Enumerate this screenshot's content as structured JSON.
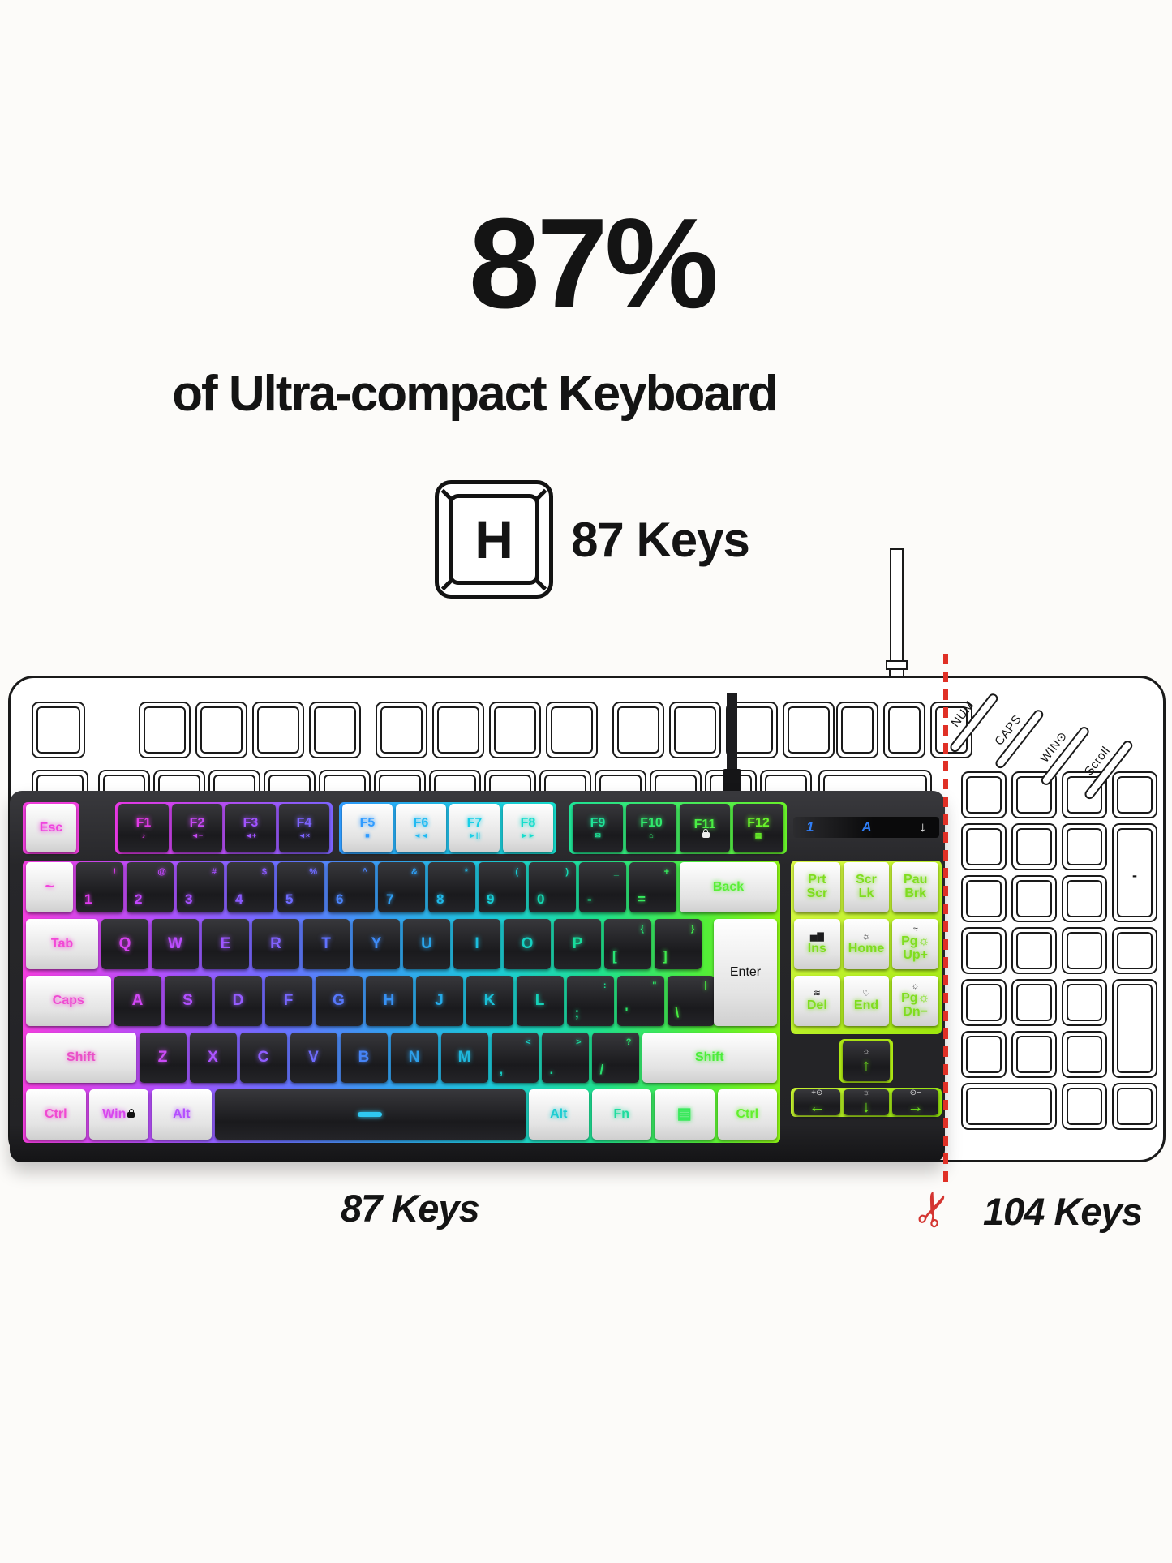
{
  "page": {
    "bg": "#fcfbf9"
  },
  "header": {
    "title": "87%",
    "subtitle": "of Ultra-compact Keyboard",
    "keycap_letter": "H",
    "keycap_caption": "87 Keys"
  },
  "footer": {
    "left_label": "87 Keys",
    "right_label": "104 Keys",
    "scissors_icon": "✂"
  },
  "status_panel": {
    "num": "1",
    "caps": "A",
    "arrow": "↓",
    "num_color": "#2f7df5",
    "caps_color": "#2f7df5",
    "arrow_color": "#ffffff"
  },
  "outline_keyboard": {
    "indicator_labels": [
      "NUM",
      "CAPS",
      "WIN⊙",
      "Scroll"
    ],
    "numpad_minus": "-"
  },
  "keyboard": {
    "f_row_segments": [
      {
        "keys": [
          {
            "n": "esc",
            "t": "Esc",
            "k": "w",
            "c": "#ef44de"
          }
        ]
      },
      {
        "keys": [
          {
            "n": "f1",
            "t": "F1",
            "i": "♪",
            "k": "b",
            "c": "#e23ae8"
          },
          {
            "n": "f2",
            "t": "F2",
            "i": "◄−",
            "k": "b",
            "c": "#c648f4"
          },
          {
            "n": "f3",
            "t": "F3",
            "i": "◄+",
            "k": "b",
            "c": "#a153ff"
          },
          {
            "n": "f4",
            "t": "F4",
            "i": "◄×",
            "k": "b",
            "c": "#7d64ff"
          }
        ]
      },
      {
        "keys": [
          {
            "n": "f5",
            "t": "F5",
            "i": "■",
            "k": "w",
            "c": "#2f9bff"
          },
          {
            "n": "f6",
            "t": "F6",
            "i": "◄◄",
            "k": "w",
            "c": "#20baf2"
          },
          {
            "n": "f7",
            "t": "F7",
            "i": "►||",
            "k": "w",
            "c": "#18cfe6"
          },
          {
            "n": "f8",
            "t": "F8",
            "i": "►►",
            "k": "w",
            "c": "#15ddcc"
          }
        ]
      },
      {
        "keys": [
          {
            "n": "f9",
            "t": "F9",
            "i": "✉",
            "k": "b",
            "c": "#1fe498"
          },
          {
            "n": "f10",
            "t": "F10",
            "i": "⌂",
            "k": "b",
            "c": "#30e96c"
          },
          {
            "n": "f11",
            "t": "F11",
            "i": "lock",
            "k": "b",
            "c": "#4aef44"
          },
          {
            "n": "f12",
            "t": "F12",
            "i": "▤",
            "k": "b",
            "c": "#69f42a"
          }
        ]
      }
    ],
    "main_rows": [
      {
        "keys": [
          {
            "n": "tilde",
            "t": "~",
            "k": "w",
            "w": 1,
            "c": "#f340dc"
          },
          {
            "n": "1",
            "t": "1",
            "s": "!",
            "k": "b",
            "c": "#e33cf2"
          },
          {
            "n": "2",
            "t": "2",
            "s": "@",
            "k": "b",
            "c": "#c447ff"
          },
          {
            "n": "3",
            "t": "3",
            "s": "#",
            "k": "b",
            "c": "#a750ff"
          },
          {
            "n": "4",
            "t": "4",
            "s": "$",
            "k": "b",
            "c": "#8b5bff"
          },
          {
            "n": "5",
            "t": "5",
            "s": "%",
            "k": "b",
            "c": "#6e6bff"
          },
          {
            "n": "6",
            "t": "6",
            "s": "^",
            "k": "b",
            "c": "#4a84fa"
          },
          {
            "n": "7",
            "t": "7",
            "s": "&",
            "k": "b",
            "c": "#2f9ef2"
          },
          {
            "n": "8",
            "t": "8",
            "s": "*",
            "k": "b",
            "c": "#20b7e6"
          },
          {
            "n": "9",
            "t": "9",
            "s": "(",
            "k": "b",
            "c": "#17ccd4"
          },
          {
            "n": "0",
            "t": "0",
            "s": ")",
            "k": "b",
            "c": "#15dab2"
          },
          {
            "n": "minus",
            "t": "-",
            "s": "_",
            "k": "b",
            "c": "#1de288"
          },
          {
            "n": "equals",
            "t": "=",
            "s": "+",
            "k": "b",
            "c": "#36ea5e"
          },
          {
            "n": "back",
            "t": "Back",
            "k": "w",
            "w": 2,
            "c": "#58ef36"
          }
        ]
      },
      {
        "keys": [
          {
            "n": "tab",
            "t": "Tab",
            "k": "w",
            "w": 1.5,
            "c": "#f248d6"
          },
          {
            "n": "q",
            "t": "Q",
            "k": "b",
            "c": "#d944f2"
          },
          {
            "n": "w",
            "t": "W",
            "k": "b",
            "c": "#bb4dff"
          },
          {
            "n": "e",
            "t": "E",
            "k": "b",
            "c": "#9e57ff"
          },
          {
            "n": "r",
            "t": "R",
            "k": "b",
            "c": "#8262ff"
          },
          {
            "n": "t",
            "t": "T",
            "k": "b",
            "c": "#6072ff"
          },
          {
            "n": "y",
            "t": "Y",
            "k": "b",
            "c": "#3e8bf8"
          },
          {
            "n": "u",
            "t": "U",
            "k": "b",
            "c": "#29a5ec"
          },
          {
            "n": "i",
            "t": "I",
            "k": "b",
            "c": "#1cbede"
          },
          {
            "n": "o",
            "t": "O",
            "k": "b",
            "c": "#16d1c2"
          },
          {
            "n": "p",
            "t": "P",
            "k": "b",
            "c": "#18dc9c"
          },
          {
            "n": "lbracket",
            "t": "[",
            "s": "{",
            "k": "b",
            "c": "#28e474"
          },
          {
            "n": "rbracket",
            "t": "]",
            "s": "}",
            "k": "b",
            "c": "#41eb4e"
          }
        ]
      },
      {
        "keys": [
          {
            "n": "caps",
            "t": "Caps",
            "k": "w",
            "w": 1.75,
            "c": "#ef4bd2"
          },
          {
            "n": "a",
            "t": "A",
            "k": "b",
            "c": "#d147f4"
          },
          {
            "n": "s",
            "t": "S",
            "k": "b",
            "c": "#b250ff"
          },
          {
            "n": "d",
            "t": "D",
            "k": "b",
            "c": "#955cff"
          },
          {
            "n": "f",
            "t": "F",
            "k": "b",
            "c": "#7867ff"
          },
          {
            "n": "g",
            "t": "G",
            "k": "b",
            "c": "#5677fa"
          },
          {
            "n": "h",
            "t": "H",
            "k": "b",
            "c": "#3791f4"
          },
          {
            "n": "j",
            "t": "J",
            "k": "b",
            "c": "#25aae8"
          },
          {
            "n": "k",
            "t": "K",
            "k": "b",
            "c": "#1ac1d8"
          },
          {
            "n": "l",
            "t": "L",
            "k": "b",
            "c": "#16d2b8"
          },
          {
            "n": "semicolon",
            "t": ";",
            "s": ":",
            "k": "b",
            "c": "#1bde90"
          },
          {
            "n": "quote",
            "t": "'",
            "s": "\"",
            "k": "b",
            "c": "#2de766"
          },
          {
            "n": "backslash",
            "t": "\\",
            "s": "|",
            "k": "b",
            "c": "#49ed40"
          }
        ]
      },
      {
        "keys": [
          {
            "n": "shift-left",
            "t": "Shift",
            "k": "w",
            "w": 2.25,
            "c": "#ea4fc8"
          },
          {
            "n": "z",
            "t": "Z",
            "k": "b",
            "c": "#cb4bf6"
          },
          {
            "n": "x",
            "t": "X",
            "k": "b",
            "c": "#ac53ff"
          },
          {
            "n": "c",
            "t": "C",
            "k": "b",
            "c": "#905eff"
          },
          {
            "n": "v",
            "t": "V",
            "k": "b",
            "c": "#6f6cfd"
          },
          {
            "n": "b",
            "t": "B",
            "k": "b",
            "c": "#4684f6"
          },
          {
            "n": "n",
            "t": "N",
            "k": "b",
            "c": "#2d9eea"
          },
          {
            "n": "m",
            "t": "M",
            "k": "b",
            "c": "#1eb6dc"
          },
          {
            "n": "comma",
            "t": ",",
            "s": "<",
            "k": "b",
            "c": "#17c9c0"
          },
          {
            "n": "period",
            "t": ".",
            "s": ">",
            "k": "b",
            "c": "#19d79a"
          },
          {
            "n": "slash",
            "t": "/",
            "s": "?",
            "k": "b",
            "c": "#2ae16e"
          },
          {
            "n": "shift-right",
            "t": "Shift",
            "k": "w",
            "w": 2.75,
            "c": "#4bed3a"
          }
        ]
      },
      {
        "keys": [
          {
            "n": "ctrl-left",
            "t": "Ctrl",
            "k": "w",
            "w": 1.25,
            "c": "#f049d2"
          },
          {
            "n": "win",
            "t": "Win",
            "k": "w",
            "w": 1.25,
            "c": "#d846ee",
            "lock": true
          },
          {
            "n": "alt-left",
            "t": "Alt",
            "k": "w",
            "w": 1.25,
            "c": "#b44fff"
          },
          {
            "n": "space",
            "t": "",
            "k": "b",
            "w": 6.25,
            "c": "#3f8cff",
            "dash": "#2fc8f0"
          },
          {
            "n": "alt-right",
            "t": "Alt",
            "k": "w",
            "w": 1.25,
            "c": "#1ccdd2"
          },
          {
            "n": "fn",
            "t": "Fn",
            "k": "w",
            "w": 1.25,
            "c": "#1edc9e"
          },
          {
            "n": "menu",
            "t": "▤",
            "k": "w",
            "w": 1.25,
            "c": "#3ae95c"
          },
          {
            "n": "ctrl-right",
            "t": "Ctrl",
            "k": "w",
            "w": 1.25,
            "c": "#62f02c"
          }
        ]
      }
    ],
    "enter": {
      "n": "enter",
      "t": "Enter",
      "k": "w",
      "c": "#5ef030"
    },
    "right_cluster": {
      "text_color": "#7fdd1f",
      "icon_color": "#1d1d1f",
      "pad_rows": [
        [
          {
            "n": "prt-scr",
            "lines": [
              "Prt",
              "Scr"
            ]
          },
          {
            "n": "scr-lk",
            "lines": [
              "Scr",
              "Lk"
            ]
          },
          {
            "n": "pau-brk",
            "lines": [
              "Pau",
              "Brk"
            ]
          }
        ],
        [
          {
            "n": "ins",
            "icon": "▅▇",
            "lines": [
              "Ins"
            ]
          },
          {
            "n": "home",
            "icon": "☼",
            "lines": [
              "Home"
            ]
          },
          {
            "n": "pg-up",
            "icon": "≈",
            "lines": [
              "Pg☼",
              "Up+"
            ]
          }
        ],
        [
          {
            "n": "del",
            "icon": "≋",
            "lines": [
              "Del"
            ]
          },
          {
            "n": "end",
            "icon": "♡",
            "lines": [
              "End"
            ]
          },
          {
            "n": "pg-dn",
            "icon": "☼",
            "lines": [
              "Pg☼",
              "Dn−"
            ]
          }
        ]
      ],
      "up_key": {
        "n": "arrow-up",
        "icon": "☼",
        "arrow": "↑"
      },
      "arrow_row": [
        {
          "n": "arrow-left",
          "icon": "+⊙",
          "arrow": "←"
        },
        {
          "n": "arrow-down",
          "icon": "☼",
          "arrow": "↓"
        },
        {
          "n": "arrow-right",
          "icon": "⊙−",
          "arrow": "→"
        }
      ]
    }
  }
}
